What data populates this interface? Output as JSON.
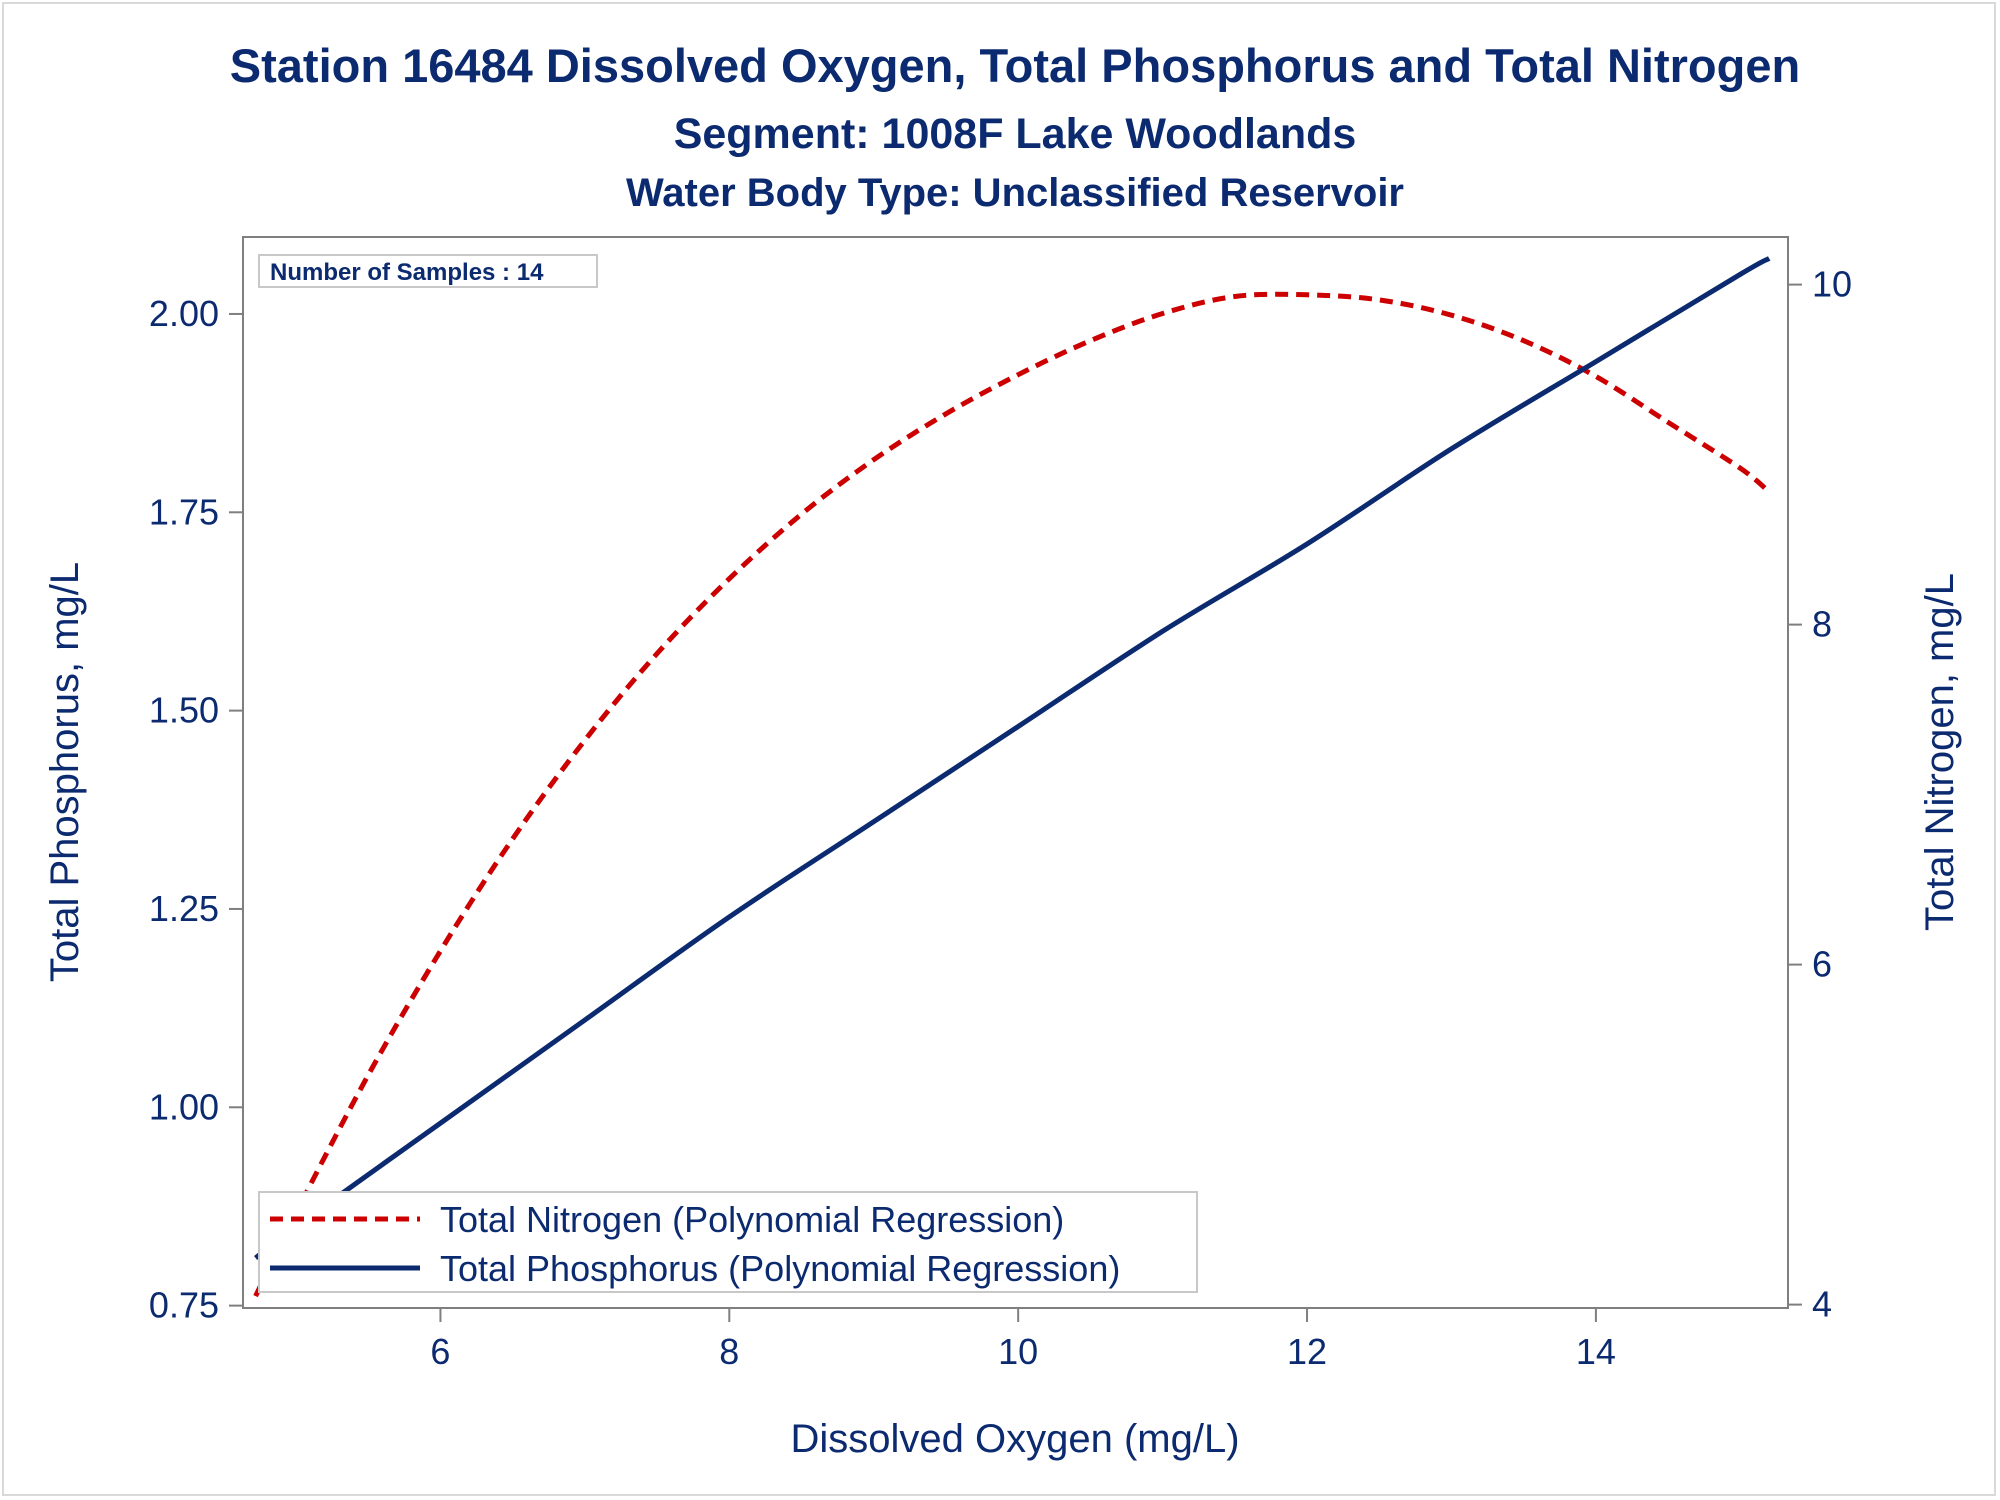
{
  "colors": {
    "text": "#0b2a6f",
    "nitrogen": "#cc0000",
    "phosphorus": "#0b2a6f",
    "axis": "#7f7f7f",
    "frame": "#d9d9d9"
  },
  "chart_data": {
    "type": "line",
    "title": "Station 16484  Dissolved Oxygen, Total Phosphorus and Total Nitrogen",
    "subtitle": "Segment: 1008F  Lake Woodlands",
    "subtitle2": "Water Body Type: Unclassified Reservoir",
    "xlabel": "Dissolved Oxygen (mg/L)",
    "ylabel": "Total Phosphorus, mg/L",
    "y2label": "Total Nitrogen, mg/L",
    "annotation": "Number of Samples : 14",
    "xlim": [
      4.633,
      15.33
    ],
    "ylim": [
      0.747,
      2.097
    ],
    "y2lim": [
      3.98,
      10.28
    ],
    "x_ticks": [
      6,
      8,
      10,
      12,
      14
    ],
    "x_tick_labels": [
      "6",
      "8",
      "10",
      "12",
      "14"
    ],
    "y_ticks": [
      0.75,
      1.0,
      1.25,
      1.5,
      1.75,
      2.0
    ],
    "y_tick_labels": [
      "0.75",
      "1.00",
      "1.25",
      "1.50",
      "1.75",
      "2.00"
    ],
    "y2_ticks": [
      4,
      6,
      8,
      10
    ],
    "y2_tick_labels": [
      "4",
      "6",
      "8",
      "10"
    ],
    "grid": false,
    "legend_position": "bottom-left",
    "series": [
      {
        "name": "Total Nitrogen (Polynomial Regression)",
        "axis": "y2",
        "style": "dashed",
        "x": [
          4.72,
          5.0,
          5.5,
          6.0,
          6.5,
          7.0,
          7.5,
          8.0,
          8.5,
          9.0,
          9.5,
          10.0,
          10.5,
          11.0,
          11.5,
          12.0,
          12.5,
          13.0,
          13.5,
          14.0,
          14.5,
          15.0,
          15.2
        ],
        "values": [
          4.05,
          4.54,
          5.35,
          6.08,
          6.74,
          7.32,
          7.83,
          8.27,
          8.65,
          8.97,
          9.24,
          9.47,
          9.67,
          9.83,
          9.93,
          9.94,
          9.91,
          9.82,
          9.67,
          9.46,
          9.19,
          8.92,
          8.78
        ]
      },
      {
        "name": "Total Phosphorus (Polynomial Regression)",
        "axis": "y",
        "style": "solid",
        "x": [
          4.72,
          5.0,
          6.0,
          7.0,
          8.0,
          9.0,
          10.0,
          11.0,
          12.0,
          13.0,
          14.0,
          15.0,
          15.2
        ],
        "values": [
          0.81,
          0.85,
          0.98,
          1.11,
          1.24,
          1.36,
          1.48,
          1.6,
          1.71,
          1.83,
          1.94,
          2.05,
          2.07
        ]
      }
    ]
  }
}
